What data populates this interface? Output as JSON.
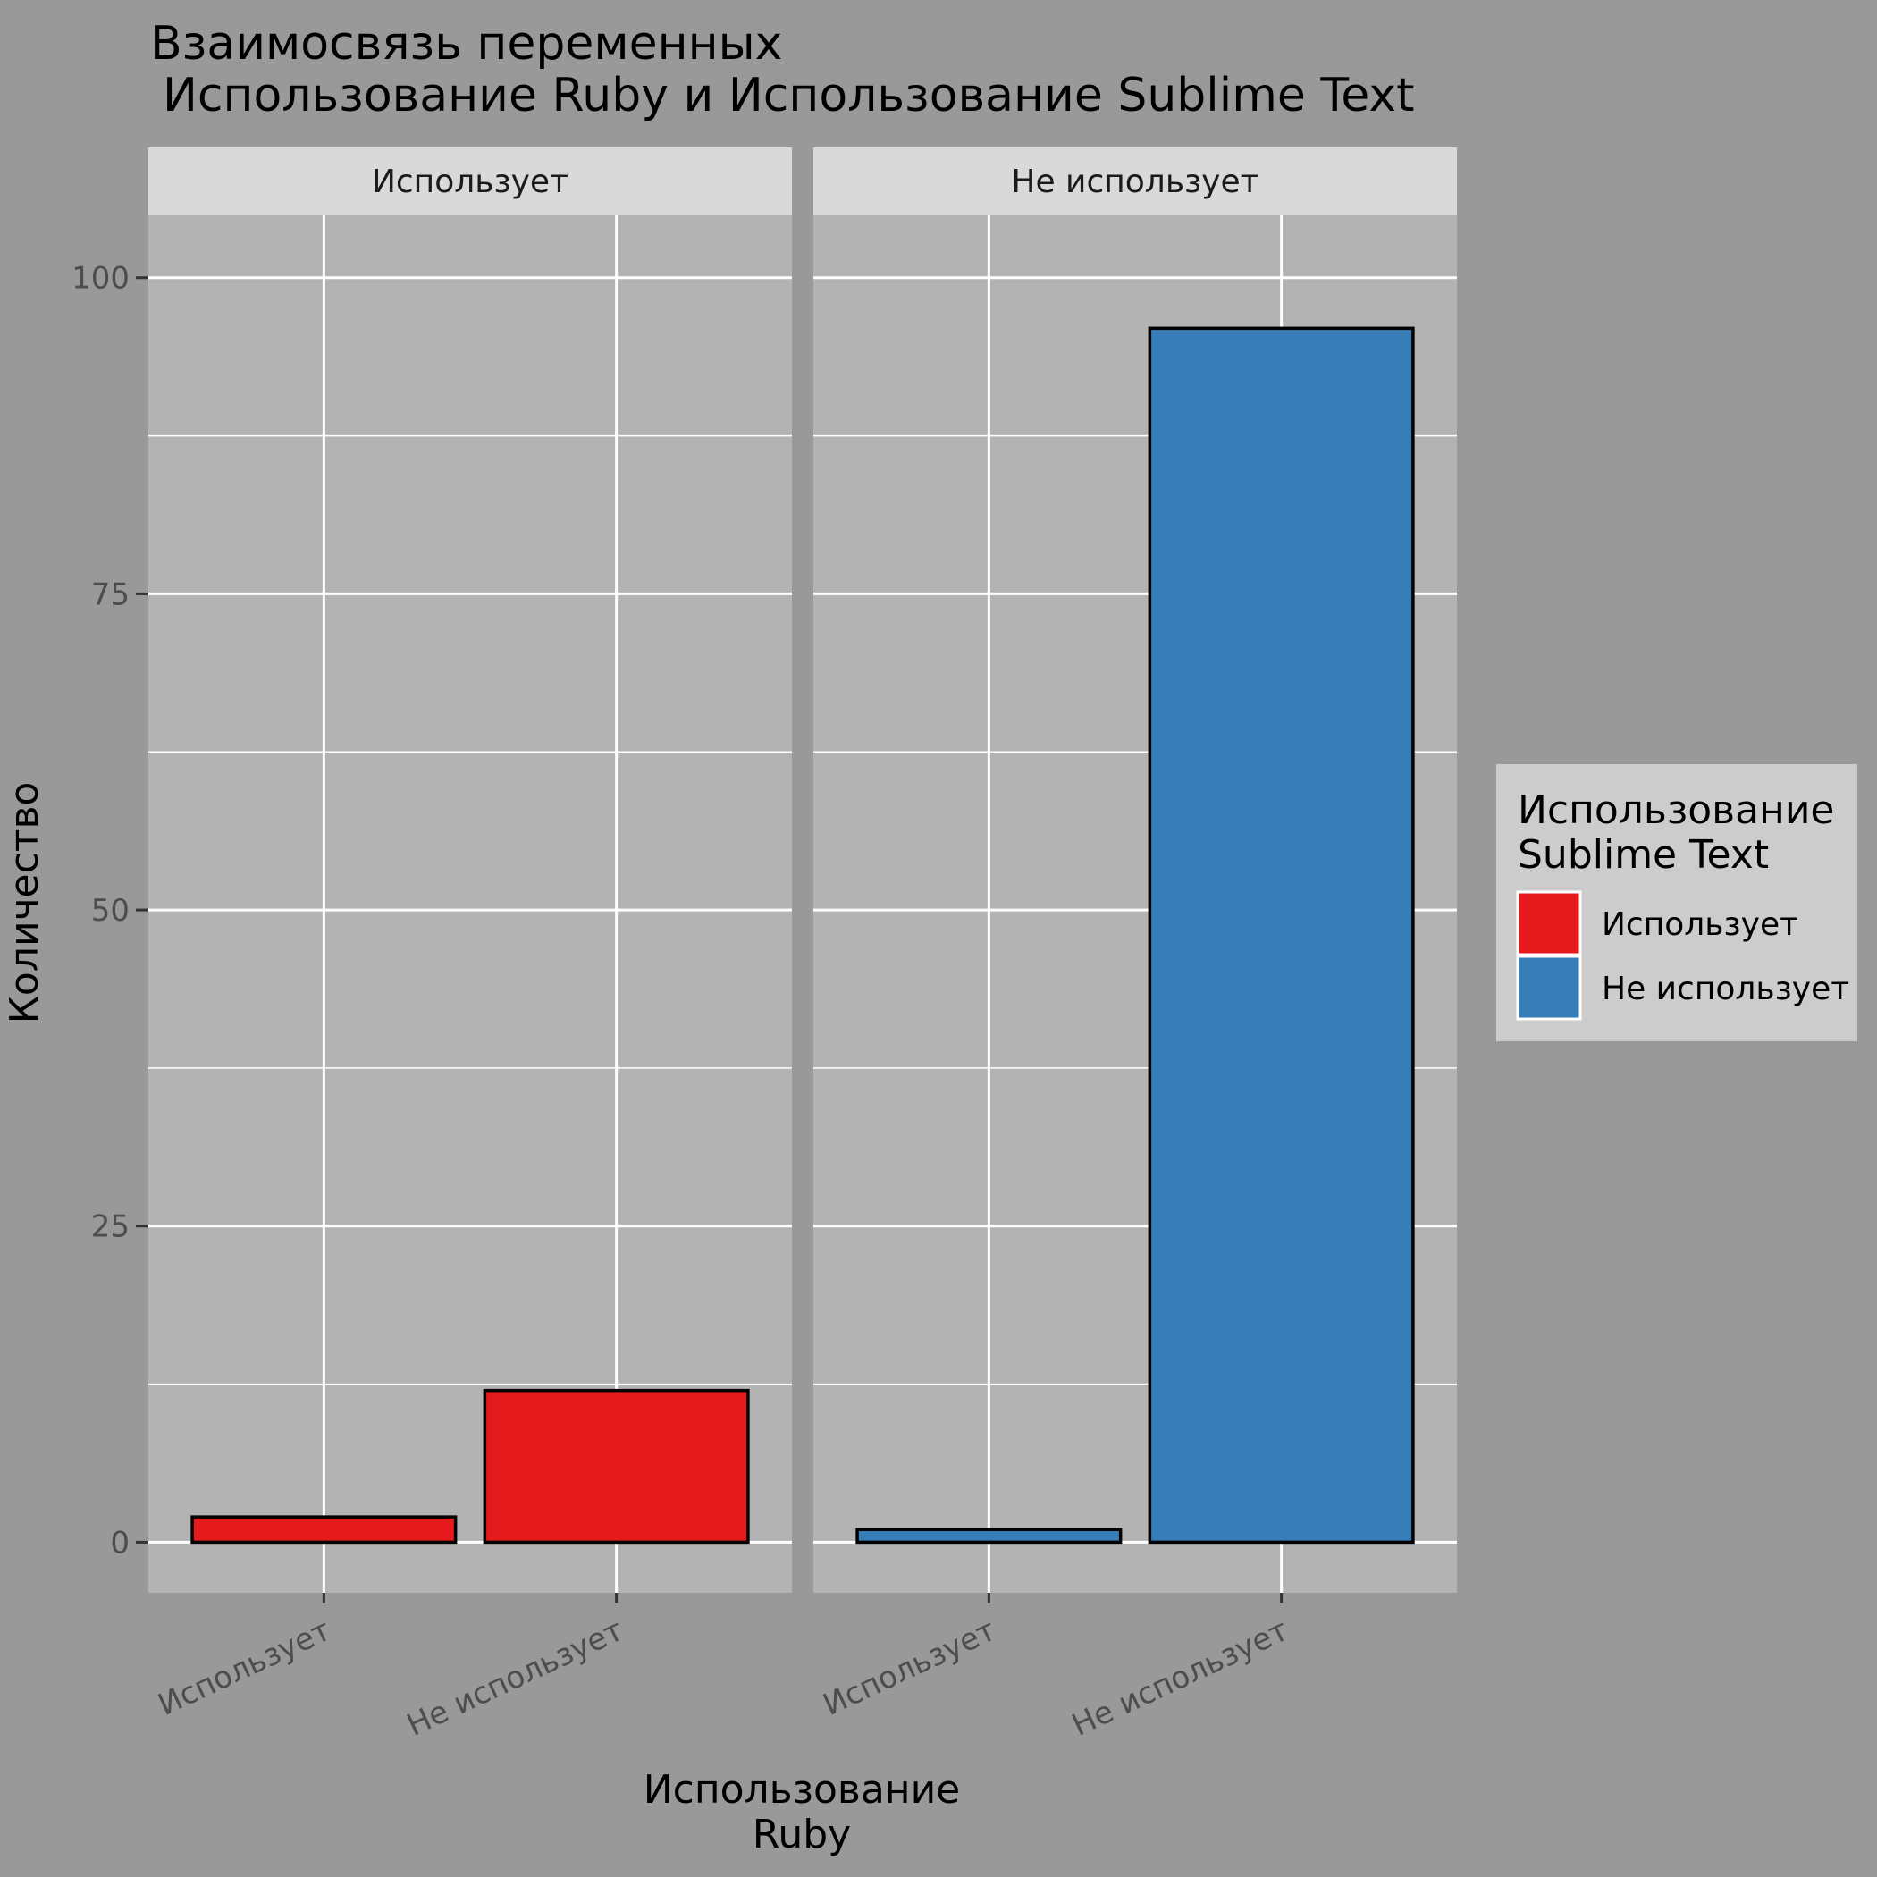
{
  "colors": {
    "background": "#999999",
    "panel": "#b3b3b3",
    "strip": "#d9d9d9",
    "grid": "#ffffff",
    "legend_bg": "#cccccc"
  },
  "chart_data": {
    "type": "bar",
    "title_lines": [
      "Взаимосвязь переменных",
      "Использование Ruby и Использование Sublime Text"
    ],
    "xlabel_lines": [
      "Использование",
      "Ruby"
    ],
    "ylabel": "Количество",
    "ylim": [
      -4,
      105
    ],
    "yticks": [
      0,
      25,
      50,
      75,
      100
    ],
    "ytick_labels": [
      "0",
      "25",
      "50",
      "75",
      "100"
    ],
    "categories": [
      "Использует",
      "Не использует"
    ],
    "facets": [
      {
        "label": "Использует",
        "values": [
          2,
          12
        ],
        "color": "#e41a1c"
      },
      {
        "label": "Не использует",
        "values": [
          1,
          96
        ],
        "color": "#377eb8"
      }
    ],
    "legend": {
      "title_lines": [
        "Использование",
        "Sublime Text"
      ],
      "position": "right",
      "items": [
        {
          "label": "Использует",
          "color": "#e41a1c"
        },
        {
          "label": "Не использует",
          "color": "#377eb8"
        }
      ]
    },
    "grid": true
  }
}
